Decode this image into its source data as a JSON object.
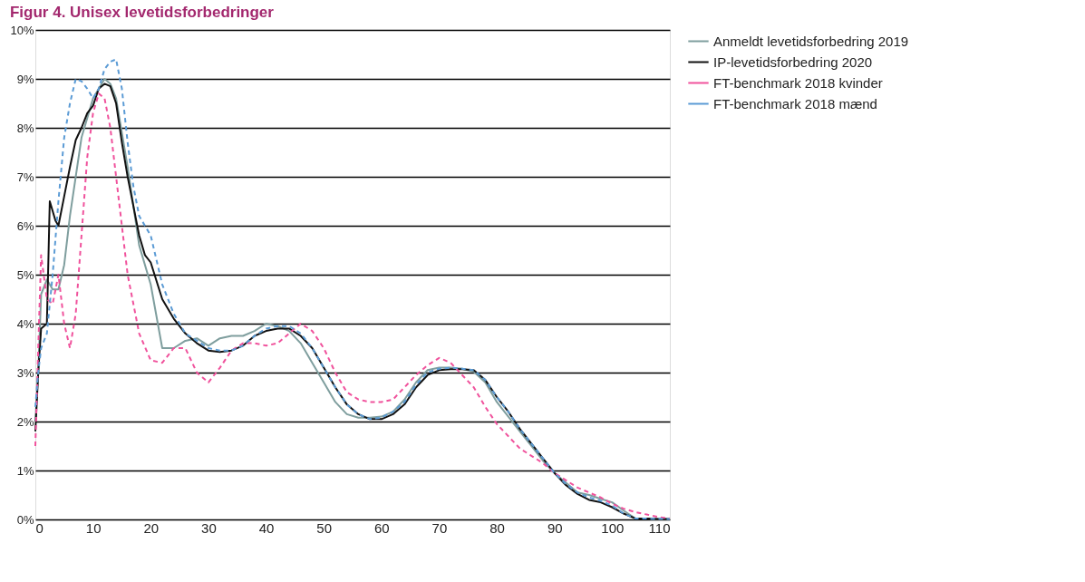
{
  "chart_data": {
    "type": "line",
    "title": "Figur 4. Unisex levetidsforbedringer",
    "xlim": [
      0,
      110
    ],
    "xticks": [
      0,
      10,
      20,
      30,
      40,
      50,
      60,
      70,
      80,
      90,
      100,
      110
    ],
    "ylim": [
      0,
      10
    ],
    "yticks": [
      {
        "value": 0,
        "label": "0%"
      },
      {
        "value": 1,
        "label": "1%"
      },
      {
        "value": 2,
        "label": "2%"
      },
      {
        "value": 3,
        "label": "3%"
      },
      {
        "value": 4,
        "label": "4%"
      },
      {
        "value": 5,
        "label": "5%"
      },
      {
        "value": 6,
        "label": "6%"
      },
      {
        "value": 7,
        "label": "7%"
      },
      {
        "value": 8,
        "label": "8%"
      },
      {
        "value": 9,
        "label": "9%"
      },
      {
        "value": 10,
        "label": "10%"
      }
    ],
    "grid": "y",
    "legend": "right",
    "marker": "none",
    "series": [
      {
        "name": "Anmeldt levetidsforbedring 2019",
        "color": "#7f9e9e",
        "line_style": "solid",
        "x": [
          0,
          0.5,
          1,
          2,
          3,
          4,
          5,
          6,
          7,
          8,
          10,
          12,
          13,
          14,
          16,
          18,
          20,
          22,
          24,
          26,
          28,
          30,
          32,
          34,
          36,
          38,
          40,
          42,
          44,
          46,
          48,
          50,
          52,
          54,
          56,
          58,
          60,
          62,
          64,
          66,
          68,
          70,
          72,
          74,
          76,
          78,
          80,
          82,
          84,
          86,
          88,
          90,
          92,
          94,
          96,
          98,
          100,
          102,
          104,
          106,
          108,
          110
        ],
        "values": [
          2.0,
          3.0,
          4.6,
          4.9,
          4.7,
          4.7,
          5.2,
          6.2,
          7.0,
          7.8,
          8.6,
          9.0,
          8.9,
          8.6,
          7.2,
          5.6,
          4.8,
          3.5,
          3.5,
          3.65,
          3.7,
          3.55,
          3.7,
          3.75,
          3.75,
          3.85,
          4.0,
          3.95,
          3.85,
          3.6,
          3.2,
          2.8,
          2.4,
          2.15,
          2.08,
          2.08,
          2.1,
          2.2,
          2.45,
          2.8,
          3.05,
          3.1,
          3.1,
          3.08,
          3.02,
          2.8,
          2.4,
          2.1,
          1.8,
          1.5,
          1.2,
          0.95,
          0.75,
          0.55,
          0.5,
          0.42,
          0.35,
          0.18,
          0.02,
          0.02,
          0.01,
          0.01
        ]
      },
      {
        "name": "IP-levetidsforbedring 2020",
        "color": "#111111",
        "line_style": "solid",
        "x": [
          0,
          0.5,
          1,
          2,
          2.5,
          3.5,
          4,
          5,
          6,
          7,
          8,
          9,
          10,
          11,
          12,
          13,
          14,
          15,
          16,
          17,
          18,
          19,
          20,
          22,
          24,
          26,
          28,
          30,
          32,
          34,
          36,
          38,
          40,
          42,
          44,
          46,
          48,
          50,
          52,
          54,
          56,
          58,
          60,
          62,
          64,
          66,
          68,
          70,
          72,
          74,
          76,
          78,
          80,
          82,
          84,
          86,
          88,
          90,
          92,
          94,
          96,
          98,
          100,
          102,
          104,
          106,
          108,
          110
        ],
        "values": [
          1.8,
          3.0,
          3.9,
          4.0,
          6.5,
          6.1,
          6.0,
          6.6,
          7.2,
          7.75,
          8.0,
          8.3,
          8.45,
          8.8,
          8.9,
          8.85,
          8.5,
          7.7,
          7.0,
          6.4,
          5.8,
          5.4,
          5.25,
          4.5,
          4.1,
          3.8,
          3.6,
          3.45,
          3.42,
          3.45,
          3.55,
          3.75,
          3.85,
          3.9,
          3.9,
          3.75,
          3.5,
          3.1,
          2.7,
          2.35,
          2.15,
          2.05,
          2.05,
          2.15,
          2.35,
          2.7,
          2.95,
          3.05,
          3.07,
          3.07,
          3.05,
          2.85,
          2.5,
          2.2,
          1.85,
          1.55,
          1.25,
          0.95,
          0.7,
          0.52,
          0.4,
          0.35,
          0.25,
          0.12,
          0.02,
          0.02,
          0.01,
          0.01
        ]
      },
      {
        "name": "FT-benchmark 2018 kvinder",
        "color": "#f0529c",
        "line_style": "dashed",
        "x": [
          0,
          0.5,
          1,
          2,
          3,
          4,
          5,
          6,
          7,
          8,
          9,
          10,
          11,
          12,
          13,
          14,
          15,
          16,
          18,
          20,
          22,
          24,
          26,
          28,
          30,
          32,
          34,
          36,
          38,
          40,
          42,
          44,
          46,
          48,
          50,
          52,
          54,
          56,
          58,
          60,
          62,
          64,
          66,
          68,
          70,
          72,
          74,
          76,
          78,
          80,
          82,
          84,
          86,
          88,
          90,
          92,
          94,
          96,
          98,
          100,
          102,
          104,
          106,
          108,
          110
        ],
        "values": [
          1.5,
          3.5,
          5.4,
          4.5,
          4.4,
          5.0,
          4.0,
          3.5,
          4.2,
          5.8,
          7.4,
          8.3,
          8.7,
          8.6,
          8.0,
          7.0,
          6.0,
          5.0,
          3.8,
          3.25,
          3.2,
          3.5,
          3.5,
          3.0,
          2.8,
          3.1,
          3.45,
          3.6,
          3.6,
          3.55,
          3.6,
          3.8,
          4.0,
          3.85,
          3.5,
          3.0,
          2.6,
          2.45,
          2.4,
          2.4,
          2.45,
          2.7,
          2.95,
          3.15,
          3.3,
          3.2,
          2.95,
          2.7,
          2.3,
          1.95,
          1.7,
          1.45,
          1.3,
          1.15,
          0.95,
          0.8,
          0.65,
          0.55,
          0.45,
          0.32,
          0.22,
          0.15,
          0.1,
          0.05,
          0.02
        ]
      },
      {
        "name": "FT-benchmark 2018 mænd",
        "color": "#5b9bd5",
        "line_style": "dashed",
        "x": [
          0,
          0.5,
          1,
          2,
          3,
          4,
          5,
          6,
          7,
          8,
          9,
          10,
          11,
          12,
          13,
          14,
          15,
          16,
          17,
          18,
          20,
          22,
          24,
          26,
          28,
          30,
          32,
          34,
          36,
          38,
          40,
          42,
          44,
          46,
          48,
          50,
          52,
          54,
          56,
          58,
          60,
          62,
          64,
          66,
          68,
          70,
          72,
          74,
          76,
          78,
          80,
          82,
          84,
          86,
          88,
          90,
          92,
          94,
          96,
          98,
          100,
          102,
          104,
          110
        ],
        "values": [
          2.3,
          3.0,
          3.5,
          3.8,
          5.0,
          6.5,
          7.8,
          8.5,
          9.0,
          8.95,
          8.8,
          8.6,
          8.8,
          9.2,
          9.35,
          9.4,
          8.8,
          7.7,
          6.8,
          6.2,
          5.8,
          4.8,
          4.2,
          3.8,
          3.65,
          3.5,
          3.45,
          3.45,
          3.55,
          3.75,
          3.9,
          3.95,
          3.95,
          3.8,
          3.5,
          3.1,
          2.7,
          2.35,
          2.15,
          2.05,
          2.08,
          2.2,
          2.4,
          2.75,
          3.0,
          3.08,
          3.1,
          3.08,
          3.05,
          2.85,
          2.5,
          2.2,
          1.85,
          1.55,
          1.25,
          0.95,
          0.72,
          0.55,
          0.45,
          0.38,
          0.28,
          0.12,
          0.02,
          0.01
        ]
      }
    ]
  }
}
